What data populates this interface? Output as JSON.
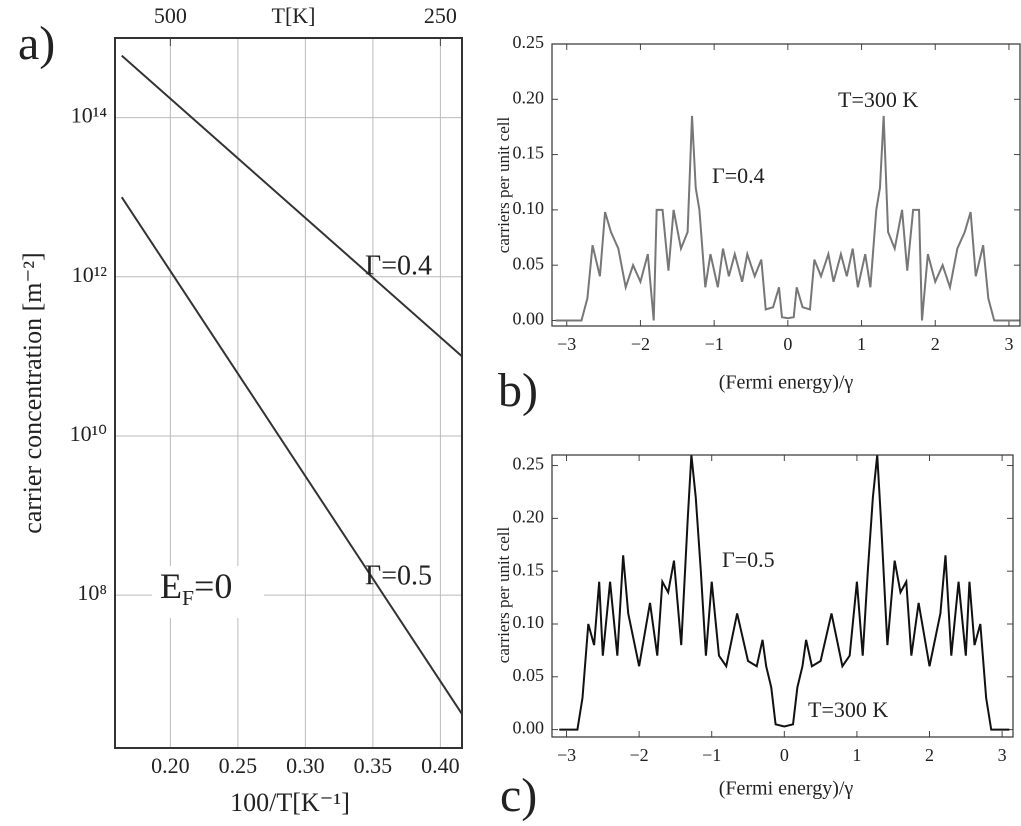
{
  "chart_data": [
    {
      "type": "line",
      "panel_label": "a)",
      "xlabel": "100/T[K⁻¹]",
      "x2label": "T[K]",
      "ylabel": "carrier concentration [m⁻²]",
      "x": [
        0.164,
        0.416
      ],
      "series": [
        {
          "name": "Γ=0.4",
          "color": "#333333",
          "values": [
            600000000000000.0,
            100000000000.0
          ]
        },
        {
          "name": "Γ=0.5",
          "color": "#333333",
          "values": [
            10000000000000.0,
            3200000.0
          ]
        }
      ],
      "annotation": {
        "text": "E",
        "subscript": "F",
        "suffix": "=0"
      },
      "xlim": [
        0.159,
        0.416
      ],
      "xticks": [
        {
          "value": 0.2,
          "label": "0.20"
        },
        0.25,
        {
          "value": 0.3,
          "label": "0.30"
        },
        0.35,
        {
          "value": 0.4,
          "label": "0.40"
        }
      ],
      "x2ticks": [
        500,
        250
      ],
      "ylim": [
        1200000.0,
        1000000000000000.0
      ],
      "yscale": "log",
      "yticks": [
        {
          "value": 100000000.0,
          "label": "10⁸"
        },
        {
          "value": 10000000000.0,
          "label": "10¹⁰"
        },
        {
          "value": 1000000000000.0,
          "label": "10¹²"
        },
        {
          "value": 100000000000000.0,
          "label": "10¹⁴"
        }
      ],
      "grid": true
    },
    {
      "type": "line",
      "panel_label": "b)",
      "xlabel": "(Fermi energy)/γ",
      "ylabel": "carriers per unit cell",
      "annotation": "T=300 K",
      "x": [
        -3.15,
        -2.8,
        -2.72,
        -2.65,
        -2.55,
        -2.48,
        -2.4,
        -2.3,
        -2.2,
        -2.1,
        -2.0,
        -1.9,
        -1.82,
        -1.78,
        -1.7,
        -1.62,
        -1.55,
        -1.45,
        -1.36,
        -1.3,
        -1.25,
        -1.2,
        -1.12,
        -1.05,
        -0.95,
        -0.88,
        -0.8,
        -0.72,
        -0.62,
        -0.55,
        -0.45,
        -0.36,
        -0.3,
        -0.2,
        -0.12,
        -0.08,
        0,
        0.08,
        0.12,
        0.2,
        0.3,
        0.36,
        0.45,
        0.55,
        0.62,
        0.72,
        0.8,
        0.88,
        0.95,
        1.05,
        1.12,
        1.2,
        1.25,
        1.3,
        1.36,
        1.45,
        1.55,
        1.62,
        1.7,
        1.78,
        1.82,
        1.9,
        2.0,
        2.1,
        2.2,
        2.3,
        2.4,
        2.48,
        2.55,
        2.65,
        2.72,
        2.8,
        3.15
      ],
      "series": [
        {
          "name": "Γ=0.4",
          "color": "#777777",
          "values": [
            0.0,
            0.0,
            0.02,
            0.068,
            0.04,
            0.098,
            0.08,
            0.065,
            0.03,
            0.05,
            0.035,
            0.06,
            0.0,
            0.1,
            0.1,
            0.045,
            0.1,
            0.065,
            0.08,
            0.185,
            0.12,
            0.1,
            0.03,
            0.06,
            0.03,
            0.065,
            0.04,
            0.06,
            0.035,
            0.06,
            0.04,
            0.055,
            0.01,
            0.012,
            0.03,
            0.003,
            0.002,
            0.003,
            0.03,
            0.012,
            0.01,
            0.055,
            0.04,
            0.06,
            0.035,
            0.06,
            0.04,
            0.065,
            0.03,
            0.06,
            0.03,
            0.1,
            0.12,
            0.185,
            0.08,
            0.065,
            0.1,
            0.045,
            0.1,
            0.1,
            0.0,
            0.06,
            0.035,
            0.05,
            0.03,
            0.065,
            0.08,
            0.098,
            0.04,
            0.068,
            0.02,
            0.0,
            0.0
          ]
        }
      ],
      "xlim": [
        -3.2,
        3.15
      ],
      "xticks": [
        {
          "value": -3,
          "label": "−3"
        },
        {
          "value": -2,
          "label": "−2"
        },
        {
          "value": -1,
          "label": "−1"
        },
        0,
        1,
        2,
        3
      ],
      "ylim": [
        -0.005,
        0.25
      ],
      "yticks": [
        {
          "value": 0,
          "label": "0.00"
        },
        0.05,
        {
          "value": 0.1,
          "label": "0.10"
        },
        0.15,
        {
          "value": 0.2,
          "label": "0.20"
        },
        0.25
      ]
    },
    {
      "type": "line",
      "panel_label": "c)",
      "xlabel": "(Fermi energy)/γ",
      "ylabel": "carriers per unit cell",
      "annotation": "T=300 K",
      "x": [
        -3.1,
        -2.85,
        -2.78,
        -2.7,
        -2.62,
        -2.55,
        -2.5,
        -2.4,
        -2.3,
        -2.22,
        -2.15,
        -2.0,
        -1.85,
        -1.75,
        -1.68,
        -1.6,
        -1.52,
        -1.42,
        -1.33,
        -1.28,
        -1.22,
        -1.15,
        -1.08,
        -1.0,
        -0.9,
        -0.8,
        -0.65,
        -0.5,
        -0.38,
        -0.3,
        -0.25,
        -0.18,
        -0.12,
        0,
        0.12,
        0.18,
        0.25,
        0.3,
        0.38,
        0.5,
        0.65,
        0.8,
        0.9,
        1.0,
        1.08,
        1.15,
        1.22,
        1.28,
        1.33,
        1.42,
        1.52,
        1.6,
        1.68,
        1.75,
        1.85,
        2.0,
        2.15,
        2.22,
        2.3,
        2.4,
        2.5,
        2.55,
        2.62,
        2.7,
        2.78,
        2.85,
        3.1
      ],
      "series": [
        {
          "name": "Γ=0.5",
          "color": "#111111",
          "values": [
            0.0,
            0.0,
            0.03,
            0.1,
            0.08,
            0.14,
            0.07,
            0.14,
            0.07,
            0.165,
            0.11,
            0.06,
            0.12,
            0.07,
            0.14,
            0.13,
            0.16,
            0.08,
            0.2,
            0.26,
            0.22,
            0.15,
            0.07,
            0.14,
            0.07,
            0.06,
            0.11,
            0.065,
            0.06,
            0.085,
            0.06,
            0.04,
            0.005,
            0.003,
            0.005,
            0.04,
            0.06,
            0.085,
            0.06,
            0.065,
            0.11,
            0.06,
            0.07,
            0.14,
            0.07,
            0.15,
            0.22,
            0.26,
            0.2,
            0.08,
            0.16,
            0.13,
            0.14,
            0.07,
            0.12,
            0.06,
            0.11,
            0.165,
            0.07,
            0.14,
            0.07,
            0.14,
            0.08,
            0.1,
            0.03,
            0.0,
            0.0
          ]
        }
      ],
      "xlim": [
        -3.2,
        3.15
      ],
      "xticks": [
        {
          "value": -3,
          "label": "−3"
        },
        {
          "value": -2,
          "label": "−2"
        },
        {
          "value": -1,
          "label": "−1"
        },
        0,
        1,
        2,
        3
      ],
      "ylim": [
        -0.007,
        0.26
      ],
      "yticks": [
        {
          "value": 0,
          "label": "0.00"
        },
        0.05,
        {
          "value": 0.1,
          "label": "0.10"
        },
        0.15,
        {
          "value": 0.2,
          "label": "0.20"
        },
        0.25
      ]
    }
  ]
}
